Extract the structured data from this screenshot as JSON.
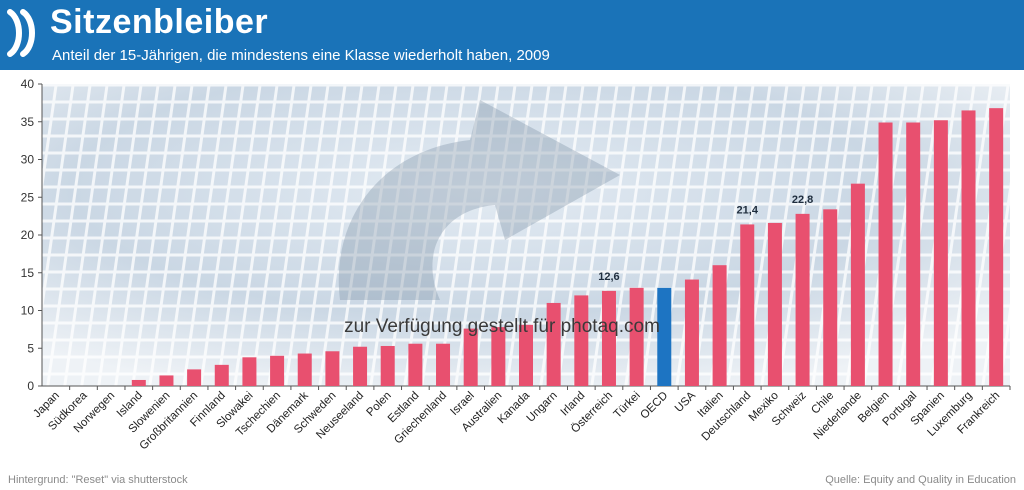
{
  "header": {
    "title": "Sitzenbleiber",
    "subtitle": "Anteil der 15-Jährigen, die mindestens eine Klasse wiederholt haben, 2009"
  },
  "footer": {
    "left": "Hintergrund: \"Reset\" via shutterstock",
    "right": "Quelle: Equity and Quality in Education"
  },
  "watermark": "zur Verfügung gestellt für photaq.com",
  "colors": {
    "header_bg": "#1a73b8",
    "bar": "#e8506f",
    "highlight_bar": "#1d74c2"
  },
  "chart_data": {
    "type": "bar",
    "title": "Sitzenbleiber",
    "xlabel": "",
    "ylabel": "",
    "ylim": [
      0,
      40
    ],
    "yticks": [
      0,
      5,
      10,
      15,
      20,
      25,
      30,
      35,
      40
    ],
    "grid": false,
    "highlight_category": "OECD",
    "categories": [
      "Japan",
      "Südkorea",
      "Norwegen",
      "Island",
      "Slowenien",
      "Großbritannien",
      "Finnland",
      "Slowakei",
      "Tschechien",
      "Dänemark",
      "Schweden",
      "Neuseeland",
      "Polen",
      "Estland",
      "Griechenland",
      "Israel",
      "Australien",
      "Kanada",
      "Ungarn",
      "Irland",
      "Österreich",
      "Türkei",
      "OECD",
      "USA",
      "Italien",
      "Deutschland",
      "Mexiko",
      "Schweiz",
      "Chile",
      "Niederlande",
      "Belgien",
      "Portugal",
      "Spanien",
      "Luxemburg",
      "Frankreich"
    ],
    "values": [
      0,
      0,
      0,
      0.8,
      1.4,
      2.2,
      2.8,
      3.8,
      4.0,
      4.3,
      4.6,
      5.2,
      5.3,
      5.6,
      5.6,
      7.6,
      7.8,
      8.1,
      11.0,
      12.0,
      12.6,
      13.0,
      13.0,
      14.1,
      16.0,
      21.4,
      21.6,
      22.8,
      23.4,
      26.8,
      34.9,
      34.9,
      35.2,
      36.5,
      36.8
    ],
    "data_labels": [
      {
        "category": "Österreich",
        "text": "12,6"
      },
      {
        "category": "Deutschland",
        "text": "21,4"
      },
      {
        "category": "Schweiz",
        "text": "22,8"
      }
    ]
  }
}
